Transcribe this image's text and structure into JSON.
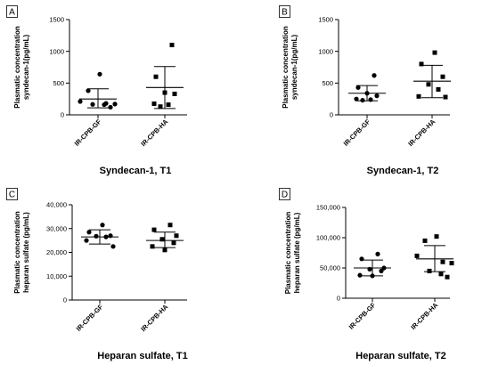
{
  "chart_data": [
    {
      "type": "scatter",
      "panel_label": "A",
      "title": "Syndecan-1, T1",
      "ylabel": [
        "Plasmatic concentration",
        "syndecan-1(pg/mL)"
      ],
      "ylim": [
        0,
        1500
      ],
      "yticks": [
        "0",
        "500",
        "1000",
        "1500"
      ],
      "categories": [
        "IR-CPB-GF",
        "IR-CPB-HA"
      ],
      "series": [
        {
          "marker": "circle",
          "mean": 250,
          "error": [
            110,
            410
          ],
          "values": [
            640,
            380,
            210,
            180,
            170,
            165,
            160,
            120
          ]
        },
        {
          "marker": "square",
          "mean": 430,
          "error": [
            100,
            760
          ],
          "values": [
            1100,
            600,
            350,
            330,
            175,
            160,
            130
          ]
        }
      ]
    },
    {
      "type": "scatter",
      "panel_label": "B",
      "title": "Syndecan-1, T2",
      "ylabel": [
        "Plasmatic concentration",
        "syndecan-1(pg/mL)"
      ],
      "ylim": [
        0,
        1500
      ],
      "yticks": [
        "0",
        "500",
        "1000",
        "1500"
      ],
      "categories": [
        "IR-CPB-GF",
        "IR-CPB-HA"
      ],
      "series": [
        {
          "marker": "circle",
          "mean": 340,
          "error": [
            220,
            460
          ],
          "values": [
            620,
            430,
            340,
            300,
            250,
            240,
            230
          ]
        },
        {
          "marker": "square",
          "mean": 530,
          "error": [
            270,
            780
          ],
          "values": [
            980,
            800,
            600,
            480,
            400,
            290,
            280
          ]
        }
      ]
    },
    {
      "type": "scatter",
      "panel_label": "C",
      "title": "Heparan sulfate, T1",
      "ylabel": [
        "Plasmatic concentration",
        "heparan sulfate (pg/mL)"
      ],
      "ylim": [
        0,
        40000
      ],
      "yticks": [
        "0",
        "10,000",
        "20,000",
        "30,000",
        "40,000"
      ],
      "categories": [
        "IR-CPB-GF",
        "IR-CPB-HA"
      ],
      "series": [
        {
          "marker": "circle",
          "mean": 26500,
          "error": [
            23500,
            29500
          ],
          "values": [
            31500,
            28500,
            27000,
            26800,
            26500,
            25000,
            22500
          ]
        },
        {
          "marker": "square",
          "mean": 25000,
          "error": [
            22000,
            28500
          ],
          "values": [
            31500,
            29500,
            27000,
            25500,
            24000,
            22500,
            21000
          ]
        }
      ]
    },
    {
      "type": "scatter",
      "panel_label": "D",
      "title": "Heparan sulfate, T2",
      "ylabel": [
        "Plasmatic concentration",
        "heparan sulfate (pg/mL)"
      ],
      "ylim": [
        0,
        150000
      ],
      "yticks": [
        "0",
        "50,000",
        "100,000",
        "150,000"
      ],
      "categories": [
        "IR-CPB-GF",
        "IR-CPB-HA"
      ],
      "series": [
        {
          "marker": "circle",
          "mean": 50000,
          "error": [
            37000,
            63000
          ],
          "values": [
            73000,
            65000,
            50000,
            48000,
            45000,
            38000,
            37000
          ]
        },
        {
          "marker": "square",
          "mean": 65000,
          "error": [
            44000,
            87000
          ],
          "values": [
            102000,
            95000,
            70000,
            60000,
            58000,
            45000,
            40000,
            35000
          ]
        }
      ]
    }
  ]
}
